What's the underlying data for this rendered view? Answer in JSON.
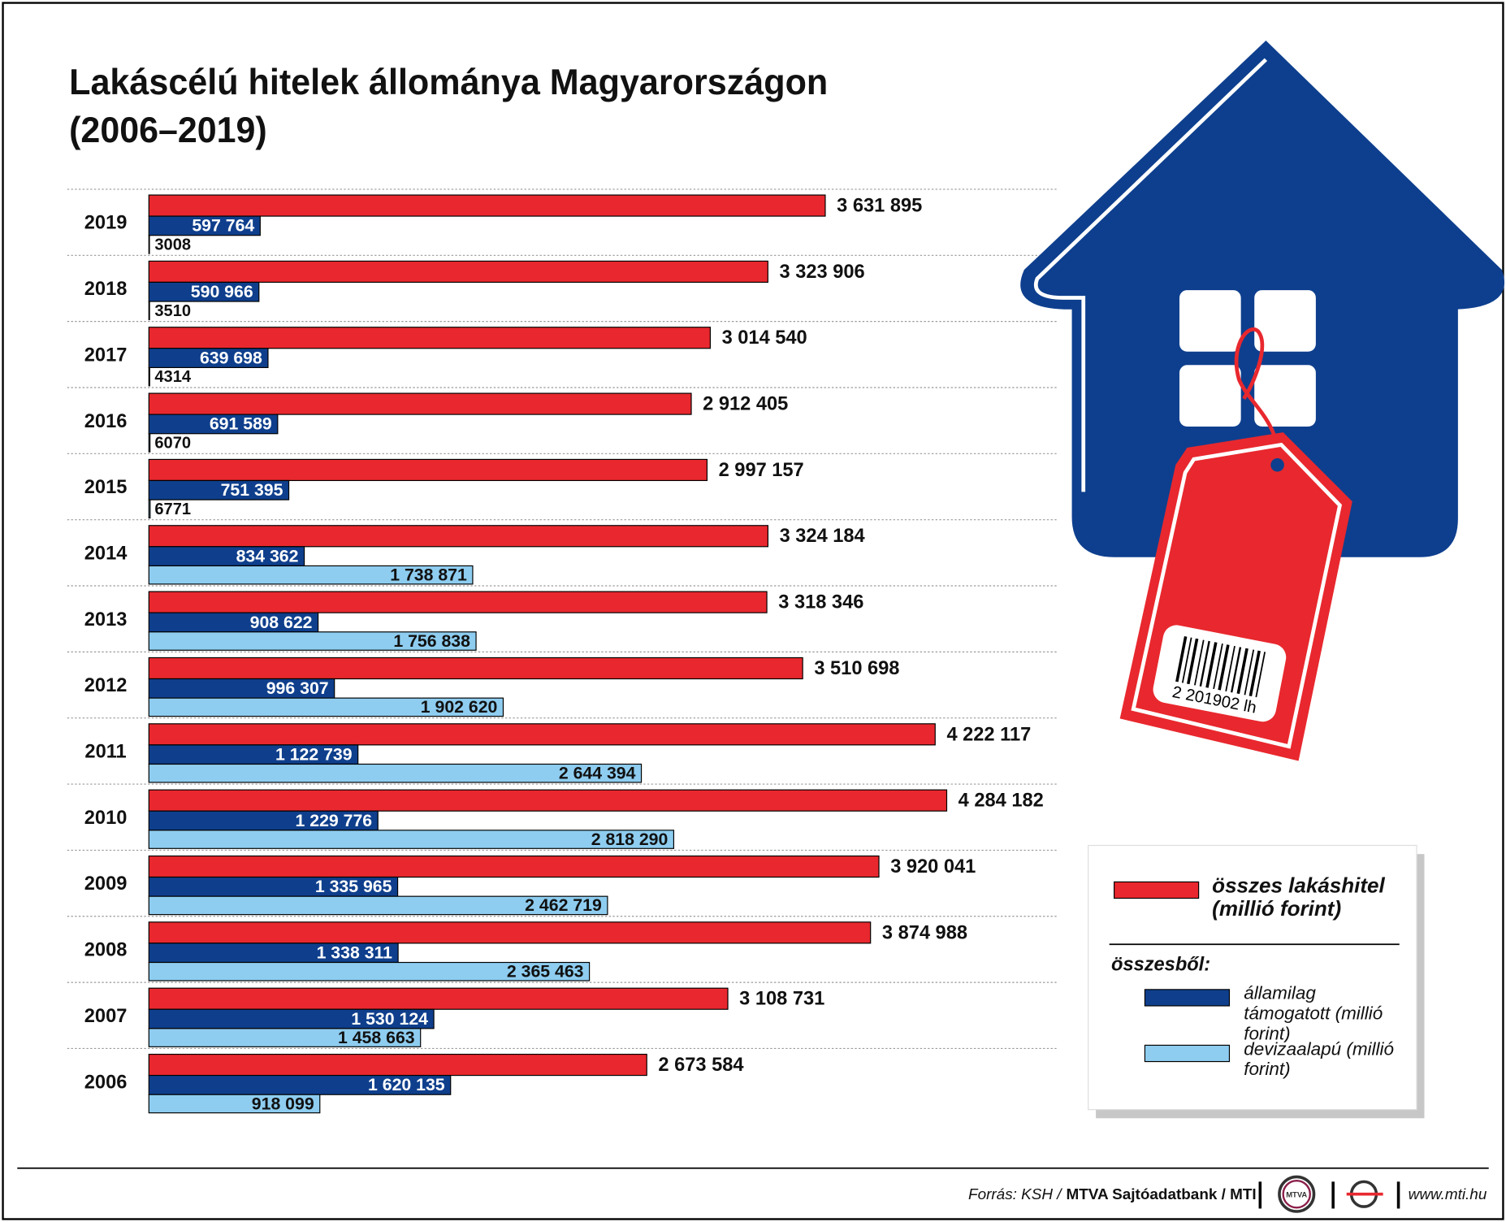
{
  "chart_data": {
    "type": "bar",
    "orientation": "horizontal",
    "title": "Lakáscélú hitelek állománya Magyarországon",
    "subtitle": "(2006–2019)",
    "categories": [
      "2019",
      "2018",
      "2017",
      "2016",
      "2015",
      "2014",
      "2013",
      "2012",
      "2011",
      "2010",
      "2009",
      "2008",
      "2007",
      "2006"
    ],
    "xlim": [
      0,
      5000000
    ],
    "series": [
      {
        "name": "összes lakáshitel (millió forint)",
        "color": "#e8282e",
        "values": [
          3631895,
          3323906,
          3014540,
          2912405,
          2997157,
          3324184,
          3318346,
          3510698,
          4222117,
          4284182,
          3920041,
          3874988,
          3108731,
          2673584
        ],
        "value_labels": [
          "3 631 895",
          "3 323 906",
          "3 014 540",
          "2 912 405",
          "2 997 157",
          "3 324 184",
          "3 318 346",
          "3 510 698",
          "4 222 117",
          "4 284 182",
          "3 920 041",
          "3 874 988",
          "3 108 731",
          "2 673 584"
        ]
      },
      {
        "name": "államilag támogatott (millió forint)",
        "color": "#0f3f8c",
        "values": [
          597764,
          590966,
          639698,
          691589,
          751395,
          834362,
          908622,
          996307,
          1122739,
          1229776,
          1335965,
          1338311,
          1530124,
          1620135
        ],
        "value_labels": [
          "597 764",
          "590 966",
          "639 698",
          "691 589",
          "751 395",
          "834 362",
          "908 622",
          "996 307",
          "1 122 739",
          "1 229 776",
          "1 335 965",
          "1 338 311",
          "1 530 124",
          "1 620 135"
        ]
      },
      {
        "name": "devizaalapú (millió forint)",
        "color": "#8ecdf0",
        "values": [
          3008,
          3510,
          4314,
          6070,
          6771,
          1738871,
          1756838,
          1902620,
          2644394,
          2818290,
          2462719,
          2365463,
          1458663,
          918099
        ],
        "value_labels": [
          "3008",
          "3510",
          "4314",
          "6070",
          "6771",
          "1 738 871",
          "1 756 838",
          "1 902 620",
          "2 644 394",
          "2 818 290",
          "2 462 719",
          "2 365 463",
          "1 458 663",
          "918 099"
        ]
      }
    ],
    "legend_subheading": "összesből:",
    "grid": true
  },
  "illustration_text": "2 201902 lh",
  "footer": {
    "source_prefix": "Forrás: KSH /",
    "source_main": "MTVA Sajtóadatbank / MTI",
    "logo": "MTVA",
    "url": "www.mti.hu"
  }
}
